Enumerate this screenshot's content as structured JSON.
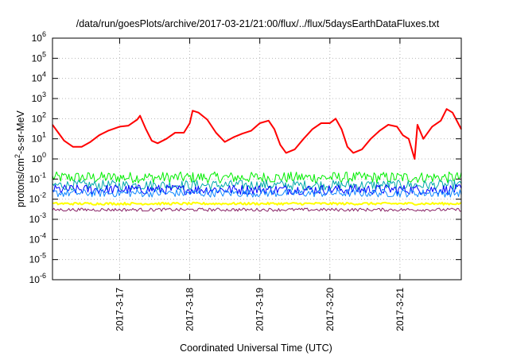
{
  "chart_data": {
    "type": "line",
    "title": "/data/run/goesPlots/archive/2017-03-21/21:00/flux/../flux/5daysEarthDataFluxes.txt",
    "xlabel": "Coordinated Universal Time (UTC)",
    "ylabel": {
      "base": "protons/cm",
      "sup": "2",
      "rest": "-s-sr-MeV"
    },
    "y_scale": "log",
    "ylim": [
      1e-06,
      1000000.0
    ],
    "xlim": [
      "2017-03-16 01:00",
      "2017-03-21 21:00"
    ],
    "grid": true,
    "y_ticks": [
      {
        "base": "10",
        "exp": "-6"
      },
      {
        "base": "10",
        "exp": "-5"
      },
      {
        "base": "10",
        "exp": "-4"
      },
      {
        "base": "10",
        "exp": "-3"
      },
      {
        "base": "10",
        "exp": "-2"
      },
      {
        "base": "10",
        "exp": "-1"
      },
      {
        "base": "10",
        "exp": "0"
      },
      {
        "base": "10",
        "exp": "1"
      },
      {
        "base": "10",
        "exp": "2"
      },
      {
        "base": "10",
        "exp": "3"
      },
      {
        "base": "10",
        "exp": "4"
      },
      {
        "base": "10",
        "exp": "5"
      },
      {
        "base": "10",
        "exp": "6"
      }
    ],
    "x_ticks": [
      "2017-3-17",
      "2017-3-18",
      "2017-3-19",
      "2017-3-20",
      "2017-3-21"
    ],
    "series": [
      {
        "color": "#ff0000",
        "width": 2,
        "points": [
          [
            "2017-03-16 01:00",
            50
          ],
          [
            "2017-03-16 03:00",
            20
          ],
          [
            "2017-03-16 05:00",
            8
          ],
          [
            "2017-03-16 08:00",
            4
          ],
          [
            "2017-03-16 11:00",
            4
          ],
          [
            "2017-03-16 14:00",
            7
          ],
          [
            "2017-03-16 17:00",
            15
          ],
          [
            "2017-03-16 20:00",
            25
          ],
          [
            "2017-03-17 00:00",
            40
          ],
          [
            "2017-03-17 03:00",
            45
          ],
          [
            "2017-03-17 06:00",
            90
          ],
          [
            "2017-03-17 07:00",
            140
          ],
          [
            "2017-03-17 09:00",
            30
          ],
          [
            "2017-03-17 11:00",
            8
          ],
          [
            "2017-03-17 13:00",
            6
          ],
          [
            "2017-03-17 16:00",
            10
          ],
          [
            "2017-03-17 19:00",
            20
          ],
          [
            "2017-03-17 22:00",
            20
          ],
          [
            "2017-03-18 00:00",
            60
          ],
          [
            "2017-03-18 01:00",
            250
          ],
          [
            "2017-03-18 03:00",
            200
          ],
          [
            "2017-03-18 06:00",
            90
          ],
          [
            "2017-03-18 09:00",
            20
          ],
          [
            "2017-03-18 12:00",
            7
          ],
          [
            "2017-03-18 15:00",
            12
          ],
          [
            "2017-03-18 18:00",
            18
          ],
          [
            "2017-03-18 21:00",
            25
          ],
          [
            "2017-03-19 00:00",
            60
          ],
          [
            "2017-03-19 03:00",
            80
          ],
          [
            "2017-03-19 05:00",
            30
          ],
          [
            "2017-03-19 07:00",
            5
          ],
          [
            "2017-03-19 09:00",
            2
          ],
          [
            "2017-03-19 12:00",
            3
          ],
          [
            "2017-03-19 15:00",
            10
          ],
          [
            "2017-03-19 18:00",
            30
          ],
          [
            "2017-03-19 21:00",
            60
          ],
          [
            "2017-03-20 00:00",
            60
          ],
          [
            "2017-03-20 02:00",
            100
          ],
          [
            "2017-03-20 04:00",
            30
          ],
          [
            "2017-03-20 06:00",
            4
          ],
          [
            "2017-03-20 08:00",
            2
          ],
          [
            "2017-03-20 11:00",
            3
          ],
          [
            "2017-03-20 14:00",
            10
          ],
          [
            "2017-03-20 17:00",
            25
          ],
          [
            "2017-03-20 20:00",
            50
          ],
          [
            "2017-03-20 23:00",
            40
          ],
          [
            "2017-03-21 01:00",
            15
          ],
          [
            "2017-03-21 03:00",
            10
          ],
          [
            "2017-03-21 05:00",
            1
          ],
          [
            "2017-03-21 06:00",
            50
          ],
          [
            "2017-03-21 08:00",
            10
          ],
          [
            "2017-03-21 11:00",
            40
          ],
          [
            "2017-03-21 14:00",
            80
          ],
          [
            "2017-03-21 16:00",
            300
          ],
          [
            "2017-03-21 18:00",
            200
          ],
          [
            "2017-03-21 21:00",
            30
          ]
        ]
      },
      {
        "color": "#00ee00",
        "width": 1,
        "level": 0.12,
        "jitter": 0.28
      },
      {
        "color": "#00aaaa",
        "width": 1,
        "level": 0.05,
        "jitter": 0.25
      },
      {
        "color": "#0000ff",
        "width": 1,
        "level": 0.03,
        "jitter": 0.25
      },
      {
        "color": "#1188ff",
        "width": 1,
        "level": 0.02,
        "jitter": 0.2
      },
      {
        "color": "#ffff00",
        "width": 2,
        "level": 0.006,
        "jitter": 0.06
      },
      {
        "color": "#882266",
        "width": 1,
        "level": 0.003,
        "jitter": 0.08
      }
    ]
  }
}
